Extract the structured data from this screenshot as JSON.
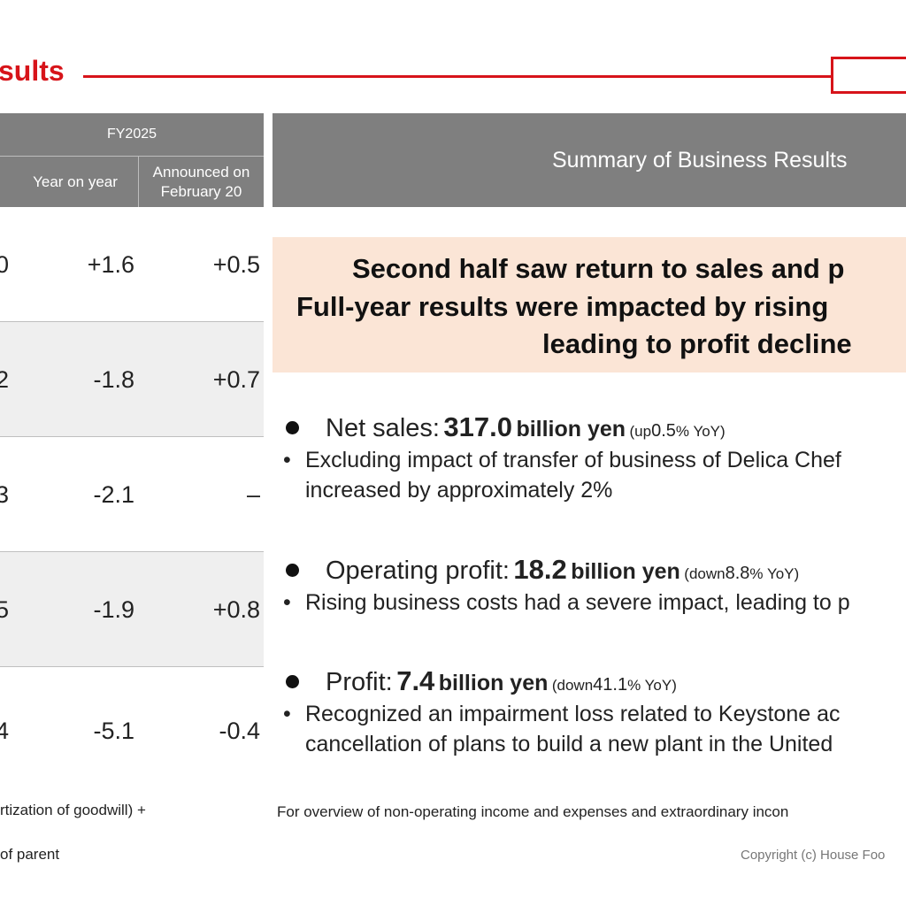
{
  "header": {
    "title": "sults"
  },
  "table": {
    "fy_label": "FY2025",
    "col_yoy": "Year on year",
    "col_announced": "Announced on February 20",
    "rows": [
      {
        "prev": "0",
        "yoy": "+1.6",
        "announced": "+0.5"
      },
      {
        "prev": "2",
        "yoy": "-1.8",
        "announced": "+0.7"
      },
      {
        "prev": "3",
        "yoy": "-2.1",
        "announced": "–"
      },
      {
        "prev": "5",
        "yoy": "-1.9",
        "announced": "+0.8"
      },
      {
        "prev": "4",
        "yoy": "-5.1",
        "announced": "-0.4"
      }
    ],
    "notes": [
      "rtization of goodwill) +",
      "of parent"
    ]
  },
  "summary": {
    "header": "Summary of Business Results",
    "headline": [
      "Second half saw return to sales and p",
      "Full-year results were impacted by rising",
      "leading to profit decline"
    ],
    "items": [
      {
        "label": "Net sales:",
        "value": "317.0",
        "unit": "billion yen",
        "change_word": "(up",
        "change_num": "0.5",
        "change_suffix": "% YoY)",
        "details": [
          "Excluding impact of transfer of business of Delica Chef",
          "increased by approximately 2%"
        ]
      },
      {
        "label": "Operating profit:",
        "value": "18.2",
        "unit": "billion yen",
        "change_word": "(down",
        "change_num": "8.8",
        "change_suffix": "% YoY)",
        "details": [
          "Rising business costs had a severe impact, leading to p"
        ]
      },
      {
        "label": "Profit:",
        "value": "7.4",
        "unit": "billion yen",
        "change_word": "(down",
        "change_num": "41.1",
        "change_suffix": "% YoY)",
        "details": [
          "Recognized an impairment loss related to Keystone ac",
          "cancellation of plans to build a new plant in the United"
        ]
      }
    ],
    "footnote": "For overview of non-operating income and expenses and extraordinary incon",
    "copyright": "Copyright (c) House Foo"
  }
}
